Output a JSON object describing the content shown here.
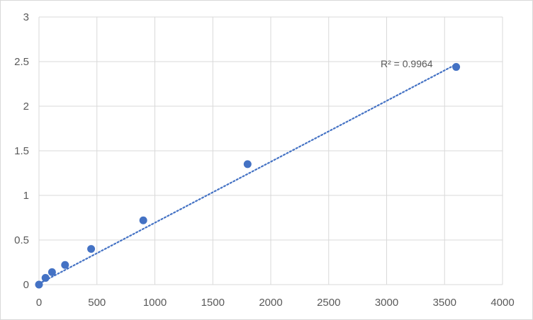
{
  "chart_data": {
    "type": "scatter",
    "title": "",
    "xlabel": "",
    "ylabel": "",
    "xlim": [
      0,
      4000
    ],
    "ylim": [
      0,
      3
    ],
    "x_ticks": [
      0,
      500,
      1000,
      1500,
      2000,
      2500,
      3000,
      3500,
      4000
    ],
    "y_ticks": [
      0,
      0.5,
      1,
      1.5,
      2,
      2.5,
      3
    ],
    "grid": true,
    "legend": "none",
    "series": [
      {
        "x": [
          0,
          56.25,
          112.5,
          225,
          450,
          900,
          1800,
          3600
        ],
        "y": [
          0,
          0.075,
          0.14,
          0.22,
          0.4,
          0.72,
          1.35,
          2.44
        ],
        "color": "#4472c4"
      }
    ],
    "trendline": {
      "type": "linear",
      "style": "dotted",
      "color": "#4472c4",
      "x_range": [
        0,
        3600
      ],
      "y_range": [
        0.01,
        2.47
      ]
    },
    "annotation": "R² = 0.9964"
  }
}
